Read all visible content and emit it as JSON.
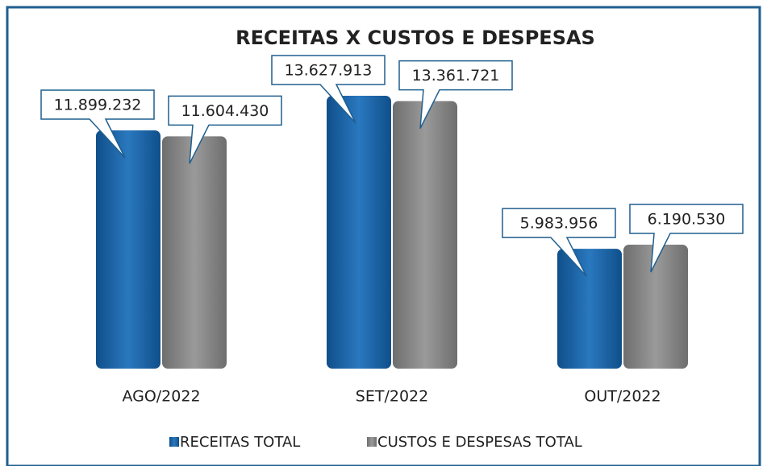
{
  "chart_data": {
    "type": "bar",
    "title": "RECEITAS X CUSTOS E DESPESAS",
    "categories": [
      "AGO/2022",
      "SET/2022",
      "OUT/2022"
    ],
    "series": [
      {
        "name": "RECEITAS TOTAL",
        "color": "#1a63a6",
        "values": [
          11899232,
          13627913,
          5983956
        ],
        "value_labels": [
          "11.899.232",
          "13.627.913",
          "5.983.956"
        ]
      },
      {
        "name": "CUSTOS E DESPESAS TOTAL",
        "color": "#858585",
        "values": [
          11604430,
          13361721,
          6190530
        ],
        "value_labels": [
          "11.604.430",
          "13.361.721",
          "6.190.530"
        ]
      }
    ],
    "ylim": [
      0,
      16000000
    ]
  }
}
